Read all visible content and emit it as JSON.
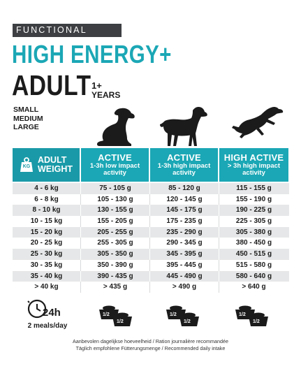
{
  "header": {
    "line_label": "FUNCTIONAL",
    "product_title": "HIGH ENERGY+",
    "life_stage": "ADULT",
    "years_number": "1+",
    "years_word": "YEARS",
    "sizes": [
      "SMALL",
      "MEDIUM",
      "LARGE"
    ]
  },
  "table": {
    "first_header": {
      "line1": "ADULT",
      "line2": "WEIGHT",
      "icon": "kg-weight-icon",
      "icon_text": "KG"
    },
    "columns": [
      {
        "title": "ACTIVE",
        "sub1": "1-3h low impact",
        "sub2": "activity"
      },
      {
        "title": "ACTIVE",
        "sub1": "1-3h high impact",
        "sub2": "activity"
      },
      {
        "title": "HIGH ACTIVE",
        "sub1": "> 3h high impact",
        "sub2": "activity"
      }
    ],
    "rows": [
      {
        "weight": "4 - 6 kg",
        "low": "75 - 105 g",
        "high": "85 - 120 g",
        "very_high": "115 - 155 g"
      },
      {
        "weight": "6 - 8 kg",
        "low": "105 - 130 g",
        "high": "120 - 145 g",
        "very_high": "155 - 190 g"
      },
      {
        "weight": "8 - 10 kg",
        "low": "130 - 155 g",
        "high": "145 - 175 g",
        "very_high": "190 - 225 g"
      },
      {
        "weight": "10 - 15 kg",
        "low": "155 - 205 g",
        "high": "175 - 235 g",
        "very_high": "225 - 305 g"
      },
      {
        "weight": "15 - 20 kg",
        "low": "205 - 255 g",
        "high": "235 - 290 g",
        "very_high": "305 - 380 g"
      },
      {
        "weight": "20 - 25 kg",
        "low": "255 - 305 g",
        "high": "290 - 345 g",
        "very_high": "380 - 450 g"
      },
      {
        "weight": "25 - 30 kg",
        "low": "305 - 350 g",
        "high": "345 - 395 g",
        "very_high": "450 - 515 g"
      },
      {
        "weight": "30 - 35 kg",
        "low": "350 - 390 g",
        "high": "395 - 445 g",
        "very_high": "515 - 580 g"
      },
      {
        "weight": "35 - 40 kg",
        "low": "390 - 435 g",
        "high": "445 - 490 g",
        "very_high": "580 - 640 g"
      },
      {
        "weight": "> 40 kg",
        "low": "> 435 g",
        "high": "> 490 g",
        "very_high": "> 640 g"
      }
    ]
  },
  "footer": {
    "clock_icon": "clock-icon",
    "hours": "24h",
    "meals": "2 meals/day",
    "bowl_label": "1/2",
    "bowl_icon": "food-bowl-icon",
    "daily_intake_line1": "Aanbevolen dagelijkse hoeveelheid / Ration journalière recommandée",
    "daily_intake_line2": "Täglich empfohlene Fütterungsmenge / Recommended daily intake"
  },
  "colors": {
    "accent": "#1ba7b5",
    "dark": "#3d3f42",
    "row_alt": "#e6e7e8"
  }
}
